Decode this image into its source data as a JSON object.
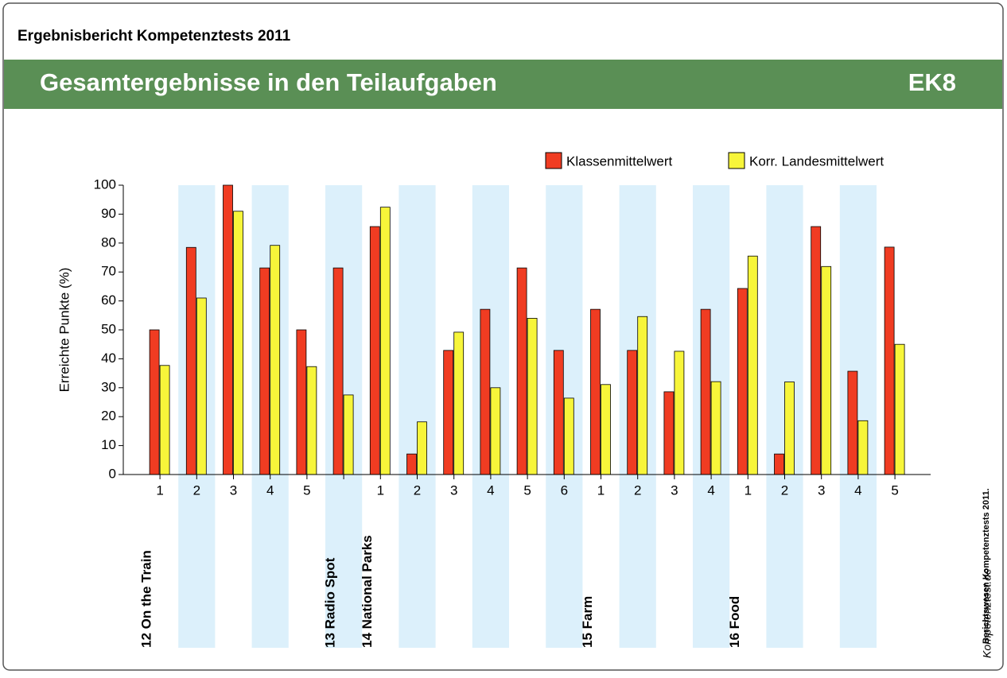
{
  "header": "Ergebnisbericht Kompetenztests 2011",
  "banner": {
    "title": "Gesamtergebnisse in den Teilaufgaben",
    "code": "EK8"
  },
  "side_note": "Berichtswesen Kompetenztests 2011.",
  "logo": "Kompetenztest.de",
  "chart_data": {
    "type": "bar",
    "ylabel": "Erreichte Punkte (%)",
    "categories": [
      "1",
      "2",
      "3",
      "4",
      "5",
      null,
      "1",
      "2",
      "3",
      "4",
      "5",
      "6",
      "1",
      "2",
      "3",
      "4",
      "1",
      "2",
      "3",
      "4",
      "5"
    ],
    "group_labels": [
      "12 On the Train",
      null,
      null,
      null,
      null,
      "13 Radio Spot",
      "14 National Parks",
      null,
      null,
      null,
      null,
      null,
      "15 Farm",
      null,
      null,
      null,
      "16 Food",
      null,
      null,
      null,
      null
    ],
    "series": [
      {
        "name": "Klassenmittelwert",
        "color": "#f03c22",
        "values": [
          50,
          78.5,
          100,
          71.4,
          50,
          71.4,
          85.7,
          7.1,
          42.9,
          57.1,
          71.4,
          42.9,
          57.1,
          42.9,
          28.6,
          57.1,
          64.3,
          7.1,
          85.7,
          35.7,
          78.6
        ]
      },
      {
        "name": "Korr. Landesmittelwert",
        "color": "#f7f53a",
        "values": [
          37.7,
          61,
          91,
          79.2,
          37.3,
          27.5,
          92.4,
          18.2,
          49.2,
          30,
          54,
          26.4,
          31.1,
          54.6,
          42.6,
          32.1,
          75.5,
          32,
          71.9,
          18.6,
          45
        ]
      }
    ],
    "ylim": [
      0,
      100
    ],
    "yticks": [
      0,
      10,
      20,
      30,
      40,
      50,
      60,
      70,
      80,
      90,
      100
    ]
  }
}
